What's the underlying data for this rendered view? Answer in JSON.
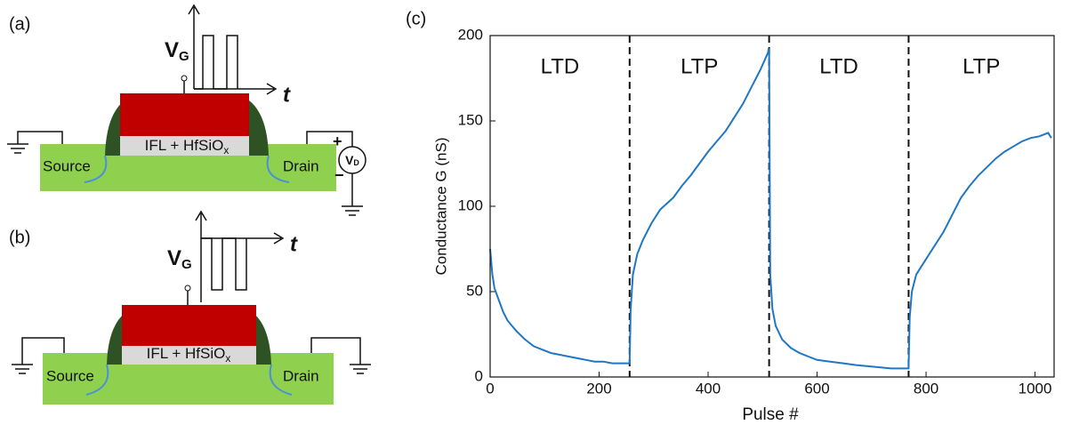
{
  "panels": {
    "a": {
      "label": "(a)",
      "gate_voltage": {
        "main": "V",
        "sub": "G"
      },
      "time": "t",
      "oxide": {
        "main": "IFL + HfSiO",
        "sub": "x"
      },
      "source": "Source",
      "drain": "Drain",
      "drain_voltage": {
        "main": "V",
        "sub": "D"
      },
      "plus": "+",
      "minus": "−"
    },
    "b": {
      "label": "(b)",
      "gate_voltage": {
        "main": "V",
        "sub": "G"
      },
      "time": "t",
      "oxide": {
        "main": "IFL + HfSiO",
        "sub": "x"
      },
      "source": "Source",
      "drain": "Drain"
    }
  },
  "chart_data": {
    "type": "line",
    "label": "(c)",
    "xlabel": "Pulse #",
    "ylabel": "Conductance G (nS)",
    "xlim": [
      0,
      1035
    ],
    "ylim": [
      0,
      200
    ],
    "xticks": [
      0,
      200,
      400,
      600,
      800,
      1000
    ],
    "yticks": [
      0,
      50,
      100,
      150,
      200
    ],
    "regions": [
      {
        "label": "LTD",
        "from": 0,
        "to": 256
      },
      {
        "label": "LTP",
        "from": 256,
        "to": 512
      },
      {
        "label": "LTD",
        "from": 512,
        "to": 768
      },
      {
        "label": "LTP",
        "from": 768,
        "to": 1035
      }
    ],
    "x": [
      0,
      4,
      8,
      16,
      24,
      32,
      48,
      64,
      80,
      96,
      112,
      128,
      144,
      160,
      176,
      192,
      208,
      224,
      240,
      255,
      256,
      258,
      262,
      270,
      280,
      296,
      312,
      336,
      352,
      368,
      384,
      400,
      416,
      432,
      448,
      464,
      480,
      496,
      510,
      511,
      512,
      514,
      518,
      524,
      536,
      552,
      568,
      584,
      600,
      624,
      648,
      672,
      704,
      736,
      767,
      768,
      770,
      774,
      782,
      792,
      808,
      832,
      848,
      864,
      880,
      896,
      912,
      928,
      944,
      960,
      976,
      992,
      1008,
      1024,
      1030
    ],
    "series": [
      {
        "color": "#1f77c4",
        "values": [
          75,
          60,
          52,
          45,
          38,
          33,
          27,
          22,
          18,
          16,
          14,
          13,
          12,
          11,
          10,
          9,
          9,
          8,
          8,
          8,
          8,
          40,
          60,
          72,
          80,
          90,
          98,
          105,
          112,
          118,
          125,
          132,
          138,
          144,
          152,
          160,
          170,
          180,
          190,
          192,
          192,
          60,
          40,
          30,
          22,
          17,
          14,
          12,
          10,
          9,
          8,
          7,
          6,
          5,
          5,
          5,
          35,
          50,
          60,
          65,
          73,
          85,
          95,
          105,
          112,
          118,
          123,
          128,
          132,
          135,
          138,
          140,
          141,
          143,
          140
        ]
      }
    ]
  }
}
